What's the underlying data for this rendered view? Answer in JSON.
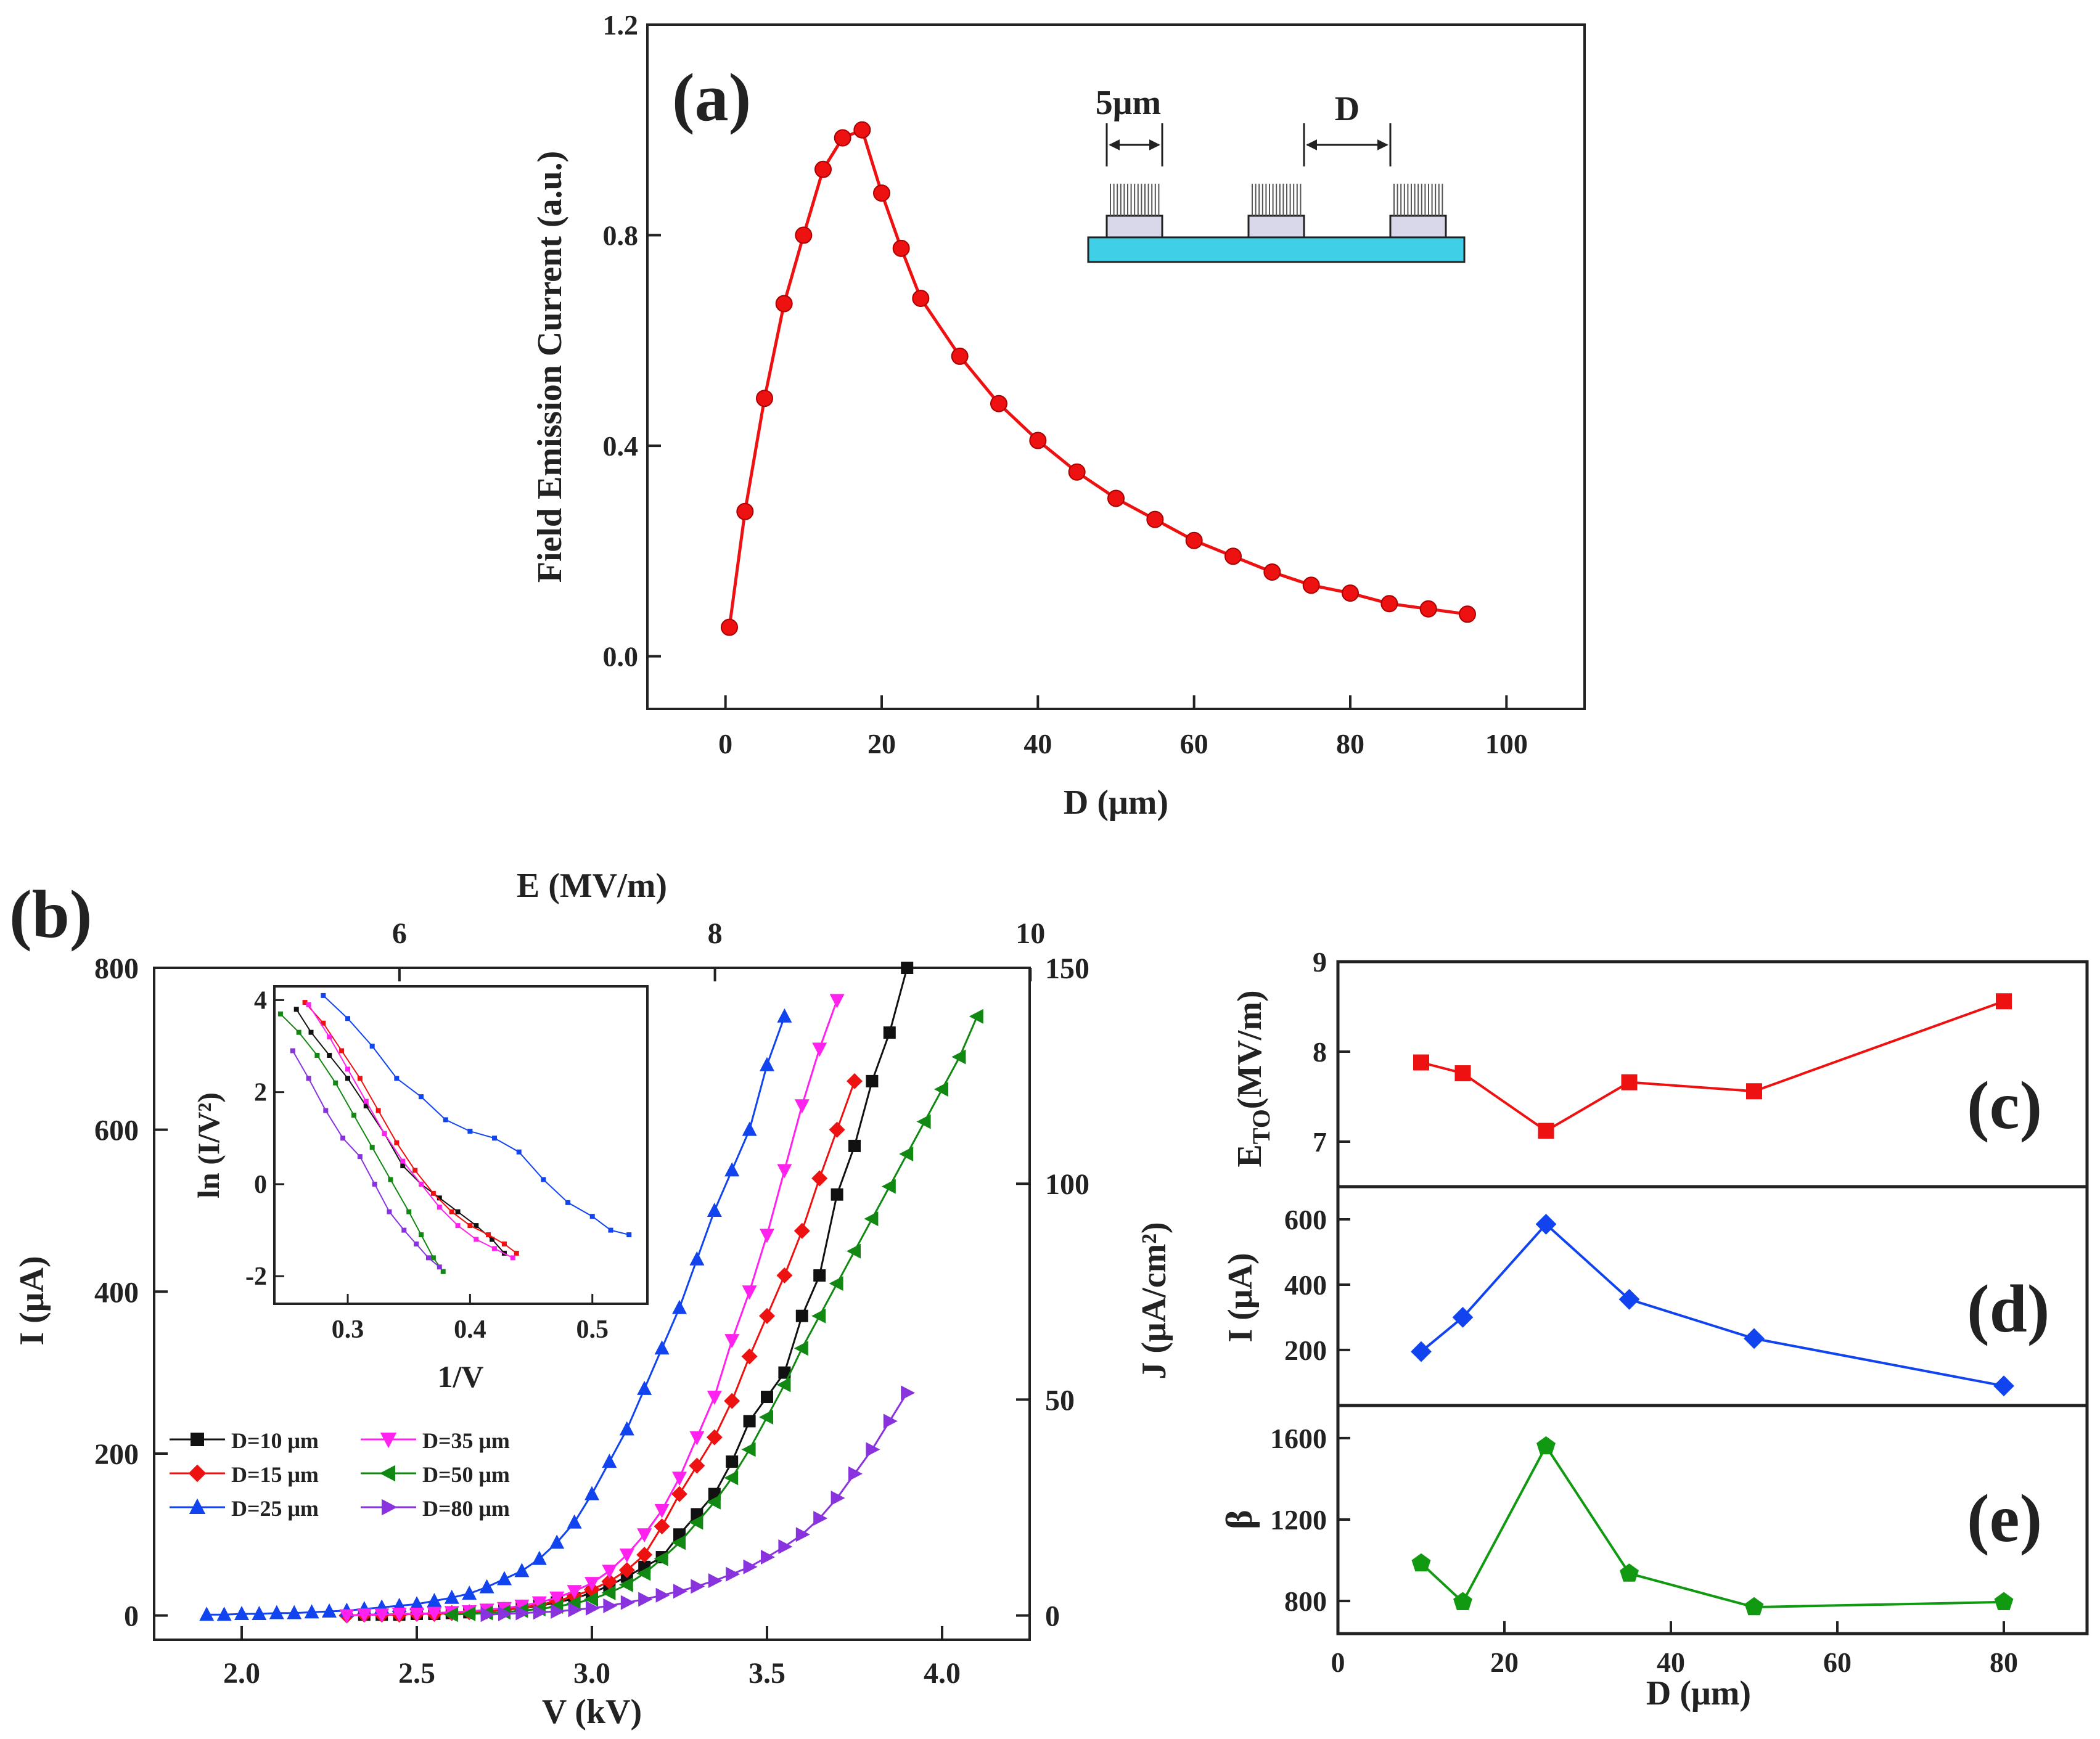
{
  "chart_data": [
    {
      "panel": "(a)",
      "type": "line",
      "xlabel": "D (μm)",
      "ylabel": "Field Emission Current (a.u.)",
      "xlim": [
        -10,
        110
      ],
      "ylim": [
        -0.1,
        1.2
      ],
      "xticks": [
        0,
        20,
        40,
        60,
        80,
        100
      ],
      "yticks": [
        0.0,
        0.4,
        0.8,
        1.2
      ],
      "ytick_labels": [
        "0.0",
        "0.4",
        "0.8",
        "1.2"
      ],
      "color": "#ee1111",
      "x": [
        0.5,
        2.5,
        5,
        7.5,
        10,
        12.5,
        15,
        17.5,
        20,
        22.5,
        25,
        30,
        35,
        40,
        45,
        50,
        55,
        60,
        65,
        70,
        75,
        80,
        85,
        90,
        95
      ],
      "y": [
        0.055,
        0.275,
        0.49,
        0.67,
        0.8,
        0.925,
        0.985,
        1.0,
        0.88,
        0.775,
        0.68,
        0.57,
        0.48,
        0.41,
        0.35,
        0.3,
        0.26,
        0.22,
        0.19,
        0.16,
        0.135,
        0.12,
        0.1,
        0.09,
        0.08
      ],
      "inset_schematic": {
        "label_width": "5μm",
        "label_gap": "D"
      }
    },
    {
      "panel": "(b)",
      "type": "line",
      "xlabel": "V (kV)",
      "ylabel": "I (μA)",
      "top_xlabel": "E (MV/m)",
      "right_ylabel": "J (μA/cm²)",
      "xlim": [
        1.75,
        4.25
      ],
      "ylim": [
        -30,
        800
      ],
      "xticks": [
        2.0,
        2.5,
        3.0,
        3.5,
        4.0
      ],
      "xtick_labels": [
        "2.0",
        "2.5",
        "3.0",
        "3.5",
        "4.0"
      ],
      "yticks": [
        0,
        200,
        400,
        600,
        800
      ],
      "top_xticks": [
        6,
        8,
        10
      ],
      "right_yticks": [
        0,
        50,
        100,
        150
      ],
      "series": [
        {
          "name": "D=10 μm",
          "color": "#111111",
          "marker": "square",
          "x": [
            2.35,
            2.4,
            2.45,
            2.5,
            2.55,
            2.6,
            2.65,
            2.7,
            2.75,
            2.8,
            2.85,
            2.9,
            2.95,
            3.0,
            3.05,
            3.1,
            3.15,
            3.2,
            3.25,
            3.3,
            3.35,
            3.4,
            3.45,
            3.5,
            3.55,
            3.6,
            3.65,
            3.7,
            3.75,
            3.8,
            3.85,
            3.9
          ],
          "y": [
            1,
            1,
            1,
            2,
            2,
            3,
            4,
            5,
            7,
            9,
            12,
            16,
            21,
            28,
            37,
            48,
            60,
            72,
            100,
            125,
            150,
            190,
            240,
            270,
            300,
            370,
            420,
            520,
            580,
            660,
            720,
            800
          ]
        },
        {
          "name": "D=15 μm",
          "color": "#ee1111",
          "marker": "diamond",
          "x": [
            2.3,
            2.35,
            2.4,
            2.45,
            2.5,
            2.55,
            2.6,
            2.65,
            2.7,
            2.75,
            2.8,
            2.85,
            2.9,
            2.95,
            3.0,
            3.05,
            3.1,
            3.15,
            3.2,
            3.25,
            3.3,
            3.35,
            3.4,
            3.45,
            3.5,
            3.55,
            3.6,
            3.65,
            3.7,
            3.75
          ],
          "y": [
            0,
            1,
            1,
            1,
            2,
            2,
            3,
            4,
            5,
            7,
            10,
            13,
            18,
            24,
            32,
            42,
            56,
            75,
            110,
            150,
            185,
            220,
            265,
            320,
            370,
            420,
            475,
            540,
            600,
            660
          ]
        },
        {
          "name": "D=25 μm",
          "color": "#1144ee",
          "marker": "triangle-up",
          "x": [
            1.9,
            1.95,
            2.0,
            2.05,
            2.1,
            2.15,
            2.2,
            2.25,
            2.3,
            2.35,
            2.4,
            2.45,
            2.5,
            2.55,
            2.6,
            2.65,
            2.7,
            2.75,
            2.8,
            2.85,
            2.9,
            2.95,
            3.0,
            3.05,
            3.1,
            3.15,
            3.2,
            3.25,
            3.3,
            3.35,
            3.4,
            3.45,
            3.5,
            3.55
          ],
          "y": [
            1,
            1,
            2,
            2,
            3,
            3,
            4,
            5,
            6,
            8,
            10,
            12,
            14,
            18,
            22,
            27,
            35,
            45,
            55,
            70,
            90,
            115,
            150,
            190,
            230,
            280,
            330,
            380,
            440,
            500,
            550,
            600,
            680,
            740
          ]
        },
        {
          "name": "D=35 μm",
          "color": "#ff22ee",
          "marker": "triangle-down",
          "x": [
            2.3,
            2.35,
            2.4,
            2.45,
            2.5,
            2.55,
            2.6,
            2.65,
            2.7,
            2.75,
            2.8,
            2.85,
            2.9,
            2.95,
            3.0,
            3.05,
            3.1,
            3.15,
            3.2,
            3.25,
            3.3,
            3.35,
            3.4,
            3.45,
            3.5,
            3.55,
            3.6,
            3.65,
            3.7
          ],
          "y": [
            0,
            1,
            1,
            2,
            2,
            3,
            4,
            5,
            7,
            9,
            12,
            16,
            22,
            30,
            40,
            55,
            75,
            100,
            130,
            170,
            220,
            270,
            340,
            400,
            470,
            550,
            630,
            700,
            760
          ]
        },
        {
          "name": "D=50 μm",
          "color": "#118811",
          "marker": "triangle-left",
          "x": [
            2.6,
            2.65,
            2.7,
            2.75,
            2.8,
            2.85,
            2.9,
            2.95,
            3.0,
            3.05,
            3.1,
            3.15,
            3.2,
            3.25,
            3.3,
            3.35,
            3.4,
            3.45,
            3.5,
            3.55,
            3.6,
            3.65,
            3.7,
            3.75,
            3.8,
            3.85,
            3.9,
            3.95,
            4.0,
            4.05,
            4.1
          ],
          "y": [
            1,
            2,
            3,
            4,
            6,
            8,
            11,
            15,
            20,
            28,
            38,
            52,
            70,
            90,
            115,
            140,
            170,
            205,
            245,
            285,
            330,
            370,
            410,
            450,
            490,
            530,
            570,
            610,
            650,
            690,
            740
          ]
        },
        {
          "name": "D=80 μm",
          "color": "#8833dd",
          "marker": "triangle-right",
          "x": [
            2.7,
            2.75,
            2.8,
            2.85,
            2.9,
            2.95,
            3.0,
            3.05,
            3.1,
            3.15,
            3.2,
            3.25,
            3.3,
            3.35,
            3.4,
            3.45,
            3.5,
            3.55,
            3.6,
            3.65,
            3.7,
            3.75,
            3.8,
            3.85,
            3.9
          ],
          "y": [
            1,
            2,
            3,
            4,
            5,
            7,
            9,
            12,
            16,
            20,
            25,
            30,
            36,
            43,
            51,
            60,
            72,
            85,
            100,
            120,
            145,
            175,
            205,
            240,
            275
          ]
        }
      ]
    },
    {
      "panel": "(b) inset",
      "type": "line",
      "xlabel": "1/V",
      "ylabel": "ln (I/V²)",
      "xlim": [
        0.24,
        0.545
      ],
      "ylim": [
        -2.6,
        4.3
      ],
      "xticks": [
        0.3,
        0.4,
        0.5
      ],
      "xtick_labels": [
        "0.3",
        "0.4",
        "0.5"
      ],
      "yticks": [
        -2,
        0,
        2,
        4
      ],
      "series": [
        {
          "name": "D=10 μm",
          "color": "#111111",
          "x": [
            0.258,
            0.27,
            0.285,
            0.3,
            0.315,
            0.33,
            0.345,
            0.36,
            0.375,
            0.39,
            0.405,
            0.418,
            0.428
          ],
          "y": [
            3.8,
            3.3,
            2.8,
            2.3,
            1.7,
            1.1,
            0.4,
            0.0,
            -0.3,
            -0.6,
            -0.9,
            -1.2,
            -1.5
          ]
        },
        {
          "name": "D=15 μm",
          "color": "#ee1111",
          "x": [
            0.265,
            0.28,
            0.295,
            0.31,
            0.325,
            0.34,
            0.355,
            0.37,
            0.385,
            0.4,
            0.415,
            0.428,
            0.438
          ],
          "y": [
            3.95,
            3.5,
            2.9,
            2.3,
            1.6,
            0.9,
            0.3,
            -0.2,
            -0.6,
            -0.9,
            -1.1,
            -1.3,
            -1.5
          ]
        },
        {
          "name": "D=25 μm",
          "color": "#1144ee",
          "x": [
            0.28,
            0.3,
            0.32,
            0.34,
            0.36,
            0.38,
            0.4,
            0.42,
            0.44,
            0.46,
            0.48,
            0.5,
            0.515,
            0.53
          ],
          "y": [
            4.1,
            3.6,
            3.0,
            2.3,
            1.9,
            1.4,
            1.15,
            1.0,
            0.7,
            0.1,
            -0.4,
            -0.7,
            -1.0,
            -1.1
          ]
        },
        {
          "name": "D=35 μm",
          "color": "#ff22ee",
          "x": [
            0.268,
            0.285,
            0.3,
            0.315,
            0.33,
            0.345,
            0.36,
            0.375,
            0.39,
            0.405,
            0.42,
            0.435
          ],
          "y": [
            3.9,
            3.2,
            2.5,
            1.8,
            1.1,
            0.5,
            0.0,
            -0.5,
            -0.9,
            -1.2,
            -1.4,
            -1.6
          ]
        },
        {
          "name": "D=50 μm",
          "color": "#118811",
          "x": [
            0.245,
            0.26,
            0.275,
            0.29,
            0.305,
            0.32,
            0.335,
            0.35,
            0.36,
            0.37,
            0.378
          ],
          "y": [
            3.7,
            3.3,
            2.8,
            2.2,
            1.5,
            0.8,
            0.1,
            -0.6,
            -1.1,
            -1.6,
            -1.9
          ]
        },
        {
          "name": "D=80 μm",
          "color": "#8833dd",
          "x": [
            0.255,
            0.268,
            0.282,
            0.296,
            0.31,
            0.322,
            0.334,
            0.346,
            0.356,
            0.366,
            0.375
          ],
          "y": [
            2.9,
            2.3,
            1.6,
            1.0,
            0.6,
            0.0,
            -0.6,
            -1.0,
            -1.3,
            -1.6,
            -1.8
          ]
        }
      ]
    },
    {
      "panel": "(c)",
      "type": "line",
      "ylabel": "E_TO (MV/m)",
      "ylabel_main": "E",
      "ylabel_sub": "TO",
      "ylabel_rest": "(MV/m)",
      "xlim": [
        0,
        90
      ],
      "ylim": [
        6.5,
        9
      ],
      "yticks": [
        7,
        8,
        9
      ],
      "color": "#ee1111",
      "marker": "square",
      "x": [
        10,
        15,
        25,
        35,
        50,
        80
      ],
      "y": [
        7.88,
        7.76,
        7.12,
        7.66,
        7.56,
        8.56
      ]
    },
    {
      "panel": "(d)",
      "type": "line",
      "ylabel": "I (μA)",
      "xlim": [
        0,
        90
      ],
      "ylim": [
        30,
        700
      ],
      "yticks": [
        200,
        400,
        600
      ],
      "color": "#1144ee",
      "marker": "diamond",
      "x": [
        10,
        15,
        25,
        35,
        50,
        80
      ],
      "y": [
        195,
        300,
        585,
        355,
        235,
        90
      ]
    },
    {
      "panel": "(e)",
      "type": "line",
      "ylabel": "β",
      "xlabel": "D (μm)",
      "xlim": [
        0,
        90
      ],
      "xticks": [
        0,
        20,
        40,
        60,
        80
      ],
      "ylim": [
        640,
        1760
      ],
      "yticks": [
        800,
        1200,
        1600
      ],
      "color": "#119911",
      "marker": "pentagon",
      "x": [
        10,
        15,
        25,
        35,
        50,
        80
      ],
      "y": [
        985,
        795,
        1560,
        935,
        770,
        795
      ]
    }
  ]
}
